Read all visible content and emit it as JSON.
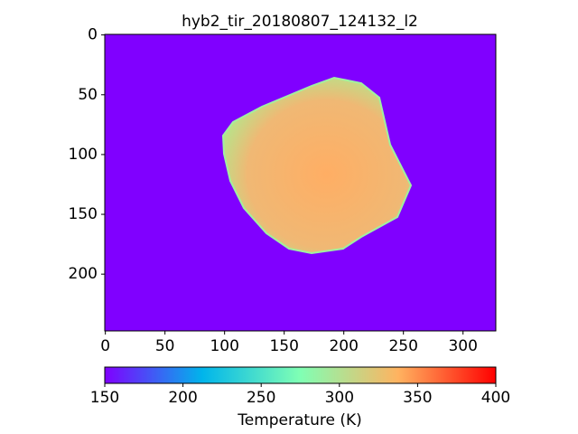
{
  "chart_data": {
    "type": "image",
    "title": "hyb2_tir_20180807_124132_l2",
    "xlim": [
      -0.5,
      327.5
    ],
    "xticks": [
      0,
      50,
      100,
      150,
      200,
      250,
      300
    ],
    "ylim": [
      247.5,
      -0.5
    ],
    "yticks": [
      0,
      50,
      100,
      150,
      200
    ],
    "colormap": "rainbow",
    "colorbar": {
      "label": "Temperature (K)",
      "lim": [
        150,
        400
      ],
      "ticks": [
        150,
        200,
        250,
        300,
        350,
        400
      ]
    }
  }
}
